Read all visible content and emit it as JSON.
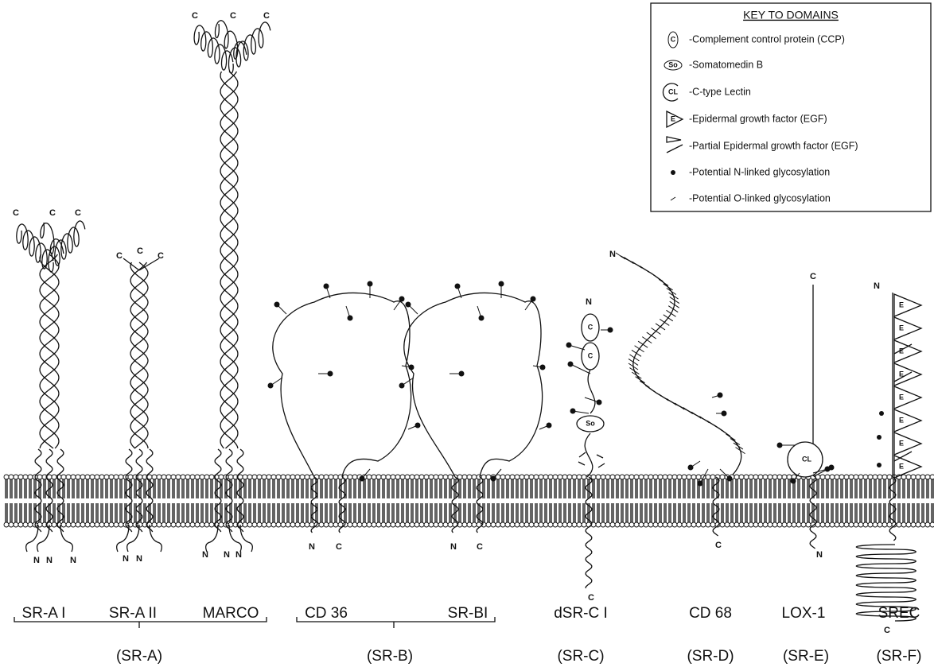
{
  "key": {
    "title": "KEY TO DOMAINS",
    "items": [
      {
        "icon": "C",
        "label": "-Complement control protein (CCP)"
      },
      {
        "icon": "So",
        "label": "-Somatomedin B"
      },
      {
        "icon": "CL",
        "label": "-C-type Lectin"
      },
      {
        "icon": "E",
        "label": "-Epidermal growth factor (EGF)"
      },
      {
        "label": "-Partial Epidermal growth factor (EGF)"
      },
      {
        "label": "-Potential N-linked glycosylation"
      },
      {
        "label": "-Potential O-linked glycosylation"
      }
    ]
  },
  "proteins": [
    {
      "name": "SR-A I",
      "termini": [
        "C",
        "C",
        "C",
        "N",
        "N",
        "N"
      ]
    },
    {
      "name": "SR-A II",
      "termini": [
        "C",
        "C",
        "C",
        "N",
        "N"
      ]
    },
    {
      "name": "MARCO",
      "termini": [
        "C",
        "C",
        "C",
        "N",
        "N",
        "N"
      ]
    },
    {
      "name": "CD 36",
      "termini": [
        "N",
        "C"
      ]
    },
    {
      "name": "SR-BI",
      "termini": [
        "N",
        "C"
      ]
    },
    {
      "name": "dSR-C I",
      "termini": [
        "N",
        "C"
      ],
      "domains": [
        "C",
        "C",
        "So"
      ]
    },
    {
      "name": "CD 68",
      "termini": [
        "N",
        "C"
      ]
    },
    {
      "name": "LOX-1",
      "termini": [
        "C",
        "N"
      ],
      "domains": [
        "CL"
      ]
    },
    {
      "name": "SREC",
      "termini": [
        "N",
        "C"
      ],
      "domains": [
        "E",
        "E",
        "E",
        "E",
        "E",
        "E",
        "E",
        "E"
      ]
    }
  ],
  "classes": [
    "(SR-A)",
    "(SR-B)",
    "(SR-C)",
    "(SR-D)",
    "(SR-E)",
    "(SR-F)"
  ]
}
